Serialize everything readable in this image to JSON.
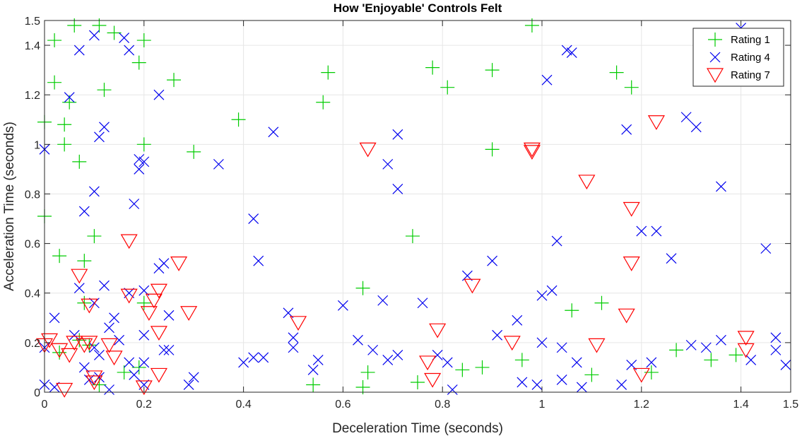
{
  "chart_data": {
    "type": "scatter",
    "title": "How 'Enjoyable' Controls Felt",
    "xlabel": "Deceleration Time (seconds)",
    "ylabel": "Acceleration Time (seconds)",
    "xlim": [
      0,
      1.5
    ],
    "ylim": [
      0,
      1.5
    ],
    "xticks": [
      0,
      0.2,
      0.4,
      0.6,
      0.8,
      1,
      1.2,
      1.4,
      1.5
    ],
    "yticks": [
      0,
      0.2,
      0.4,
      0.6,
      0.8,
      1,
      1.2,
      1.4,
      1.5
    ],
    "grid": true,
    "legend_position": "top-right",
    "series": [
      {
        "name": "Rating 1",
        "marker": "plus",
        "color": "#00cc00",
        "points": [
          [
            0.06,
            1.48
          ],
          [
            0.11,
            1.48
          ],
          [
            0.02,
            1.42
          ],
          [
            0.2,
            1.42
          ],
          [
            0.14,
            1.45
          ],
          [
            0.19,
            1.33
          ],
          [
            0.02,
            1.25
          ],
          [
            0.12,
            1.22
          ],
          [
            0.26,
            1.26
          ],
          [
            0.05,
            1.17
          ],
          [
            0.0,
            1.09
          ],
          [
            0.04,
            1.08
          ],
          [
            0.04,
            1.0
          ],
          [
            0.2,
            1.0
          ],
          [
            0.07,
            0.93
          ],
          [
            0.3,
            0.97
          ],
          [
            0.39,
            1.1
          ],
          [
            0.56,
            1.17
          ],
          [
            0.57,
            1.29
          ],
          [
            0.78,
            1.31
          ],
          [
            0.81,
            1.23
          ],
          [
            0.9,
            1.3
          ],
          [
            0.9,
            0.98
          ],
          [
            0.98,
            1.48
          ],
          [
            1.15,
            1.29
          ],
          [
            1.18,
            1.23
          ],
          [
            0.0,
            0.71
          ],
          [
            0.1,
            0.63
          ],
          [
            0.03,
            0.55
          ],
          [
            0.08,
            0.53
          ],
          [
            0.74,
            0.63
          ],
          [
            0.64,
            0.42
          ],
          [
            0.2,
            0.36
          ],
          [
            0.08,
            0.36
          ],
          [
            1.06,
            0.33
          ],
          [
            1.12,
            0.36
          ],
          [
            0.07,
            0.21
          ],
          [
            0.09,
            0.19
          ],
          [
            0.03,
            0.16
          ],
          [
            0.16,
            0.08
          ],
          [
            0.65,
            0.08
          ],
          [
            0.64,
            0.02
          ],
          [
            0.54,
            0.03
          ],
          [
            0.75,
            0.04
          ],
          [
            0.84,
            0.09
          ],
          [
            0.88,
            0.1
          ],
          [
            0.96,
            0.13
          ],
          [
            1.1,
            0.07
          ],
          [
            1.22,
            0.08
          ],
          [
            1.27,
            0.17
          ],
          [
            1.34,
            0.13
          ],
          [
            1.39,
            0.15
          ],
          [
            0.19,
            0.1
          ],
          [
            0.11,
            0.03
          ]
        ]
      },
      {
        "name": "Rating 4",
        "marker": "x",
        "color": "#0000ee",
        "points": [
          [
            0.1,
            1.44
          ],
          [
            0.16,
            1.43
          ],
          [
            0.07,
            1.38
          ],
          [
            0.17,
            1.38
          ],
          [
            0.05,
            1.19
          ],
          [
            0.23,
            1.2
          ],
          [
            0.12,
            1.07
          ],
          [
            0.11,
            1.03
          ],
          [
            0.0,
            0.98
          ],
          [
            0.19,
            0.94
          ],
          [
            0.2,
            0.93
          ],
          [
            0.19,
            0.9
          ],
          [
            0.35,
            0.92
          ],
          [
            0.46,
            1.05
          ],
          [
            0.71,
            1.04
          ],
          [
            0.69,
            0.92
          ],
          [
            0.71,
            0.82
          ],
          [
            0.1,
            0.81
          ],
          [
            0.18,
            0.76
          ],
          [
            0.08,
            0.73
          ],
          [
            0.42,
            0.7
          ],
          [
            0.43,
            0.53
          ],
          [
            1.01,
            1.26
          ],
          [
            1.05,
            1.38
          ],
          [
            1.06,
            1.37
          ],
          [
            1.29,
            1.11
          ],
          [
            1.31,
            1.07
          ],
          [
            1.17,
            1.06
          ],
          [
            1.36,
            0.83
          ],
          [
            1.03,
            0.61
          ],
          [
            1.2,
            0.65
          ],
          [
            1.23,
            0.65
          ],
          [
            1.26,
            0.54
          ],
          [
            1.45,
            0.58
          ],
          [
            0.9,
            0.53
          ],
          [
            1.4,
            1.47
          ],
          [
            0.23,
            0.5
          ],
          [
            0.24,
            0.52
          ],
          [
            0.12,
            0.43
          ],
          [
            0.07,
            0.42
          ],
          [
            0.2,
            0.41
          ],
          [
            0.17,
            0.4
          ],
          [
            0.1,
            0.36
          ],
          [
            0.14,
            0.3
          ],
          [
            0.13,
            0.26
          ],
          [
            0.25,
            0.31
          ],
          [
            0.2,
            0.23
          ],
          [
            0.15,
            0.21
          ],
          [
            0.1,
            0.18
          ],
          [
            0.11,
            0.15
          ],
          [
            0.06,
            0.23
          ],
          [
            0.02,
            0.3
          ],
          [
            0.0,
            0.18
          ],
          [
            0.08,
            0.1
          ],
          [
            0.09,
            0.05
          ],
          [
            0.11,
            0.06
          ],
          [
            0.02,
            0.02
          ],
          [
            0.0,
            0.03
          ],
          [
            0.13,
            0.01
          ],
          [
            0.17,
            0.12
          ],
          [
            0.18,
            0.07
          ],
          [
            0.2,
            0.12
          ],
          [
            0.2,
            0.03
          ],
          [
            0.24,
            0.17
          ],
          [
            0.25,
            0.17
          ],
          [
            0.29,
            0.03
          ],
          [
            0.3,
            0.06
          ],
          [
            0.4,
            0.12
          ],
          [
            0.42,
            0.14
          ],
          [
            0.44,
            0.14
          ],
          [
            0.49,
            0.32
          ],
          [
            0.5,
            0.22
          ],
          [
            0.5,
            0.18
          ],
          [
            0.54,
            0.09
          ],
          [
            0.55,
            0.13
          ],
          [
            0.6,
            0.35
          ],
          [
            0.63,
            0.21
          ],
          [
            0.66,
            0.17
          ],
          [
            0.68,
            0.37
          ],
          [
            0.69,
            0.13
          ],
          [
            0.71,
            0.15
          ],
          [
            0.76,
            0.36
          ],
          [
            0.79,
            0.15
          ],
          [
            0.81,
            0.12
          ],
          [
            0.82,
            0.01
          ],
          [
            0.85,
            0.47
          ],
          [
            0.91,
            0.23
          ],
          [
            0.95,
            0.29
          ],
          [
            0.96,
            0.04
          ],
          [
            0.99,
            0.03
          ],
          [
            1.0,
            0.2
          ],
          [
            1.0,
            0.39
          ],
          [
            1.02,
            0.41
          ],
          [
            1.04,
            0.18
          ],
          [
            1.04,
            0.05
          ],
          [
            1.07,
            0.12
          ],
          [
            1.08,
            0.02
          ],
          [
            1.16,
            0.03
          ],
          [
            1.18,
            0.11
          ],
          [
            1.22,
            0.12
          ],
          [
            1.3,
            0.19
          ],
          [
            1.33,
            0.18
          ],
          [
            1.36,
            0.21
          ],
          [
            1.42,
            0.13
          ],
          [
            1.47,
            0.22
          ],
          [
            1.47,
            0.17
          ],
          [
            1.49,
            0.11
          ]
        ]
      },
      {
        "name": "Rating 7",
        "marker": "triangle-down",
        "color": "#ff0000",
        "points": [
          [
            0.17,
            0.61
          ],
          [
            0.27,
            0.52
          ],
          [
            0.07,
            0.47
          ],
          [
            0.17,
            0.39
          ],
          [
            0.09,
            0.35
          ],
          [
            0.23,
            0.41
          ],
          [
            0.22,
            0.37
          ],
          [
            0.21,
            0.32
          ],
          [
            0.29,
            0.32
          ],
          [
            0.23,
            0.24
          ],
          [
            0.01,
            0.21
          ],
          [
            0.0,
            0.19
          ],
          [
            0.06,
            0.2
          ],
          [
            0.08,
            0.19
          ],
          [
            0.09,
            0.2
          ],
          [
            0.13,
            0.19
          ],
          [
            0.05,
            0.15
          ],
          [
            0.03,
            0.17
          ],
          [
            0.14,
            0.14
          ],
          [
            0.1,
            0.06
          ],
          [
            0.1,
            0.04
          ],
          [
            0.23,
            0.07
          ],
          [
            0.2,
            0.02
          ],
          [
            0.04,
            0.01
          ],
          [
            0.51,
            0.28
          ],
          [
            0.65,
            0.98
          ],
          [
            0.98,
            0.98
          ],
          [
            0.98,
            0.97
          ],
          [
            1.09,
            0.85
          ],
          [
            1.18,
            0.74
          ],
          [
            1.23,
            1.09
          ],
          [
            1.18,
            0.52
          ],
          [
            1.17,
            0.31
          ],
          [
            0.86,
            0.43
          ],
          [
            0.79,
            0.25
          ],
          [
            0.77,
            0.12
          ],
          [
            0.78,
            0.05
          ],
          [
            0.94,
            0.2
          ],
          [
            1.11,
            0.19
          ],
          [
            1.2,
            0.07
          ],
          [
            1.41,
            0.22
          ],
          [
            1.41,
            0.17
          ]
        ]
      }
    ]
  }
}
